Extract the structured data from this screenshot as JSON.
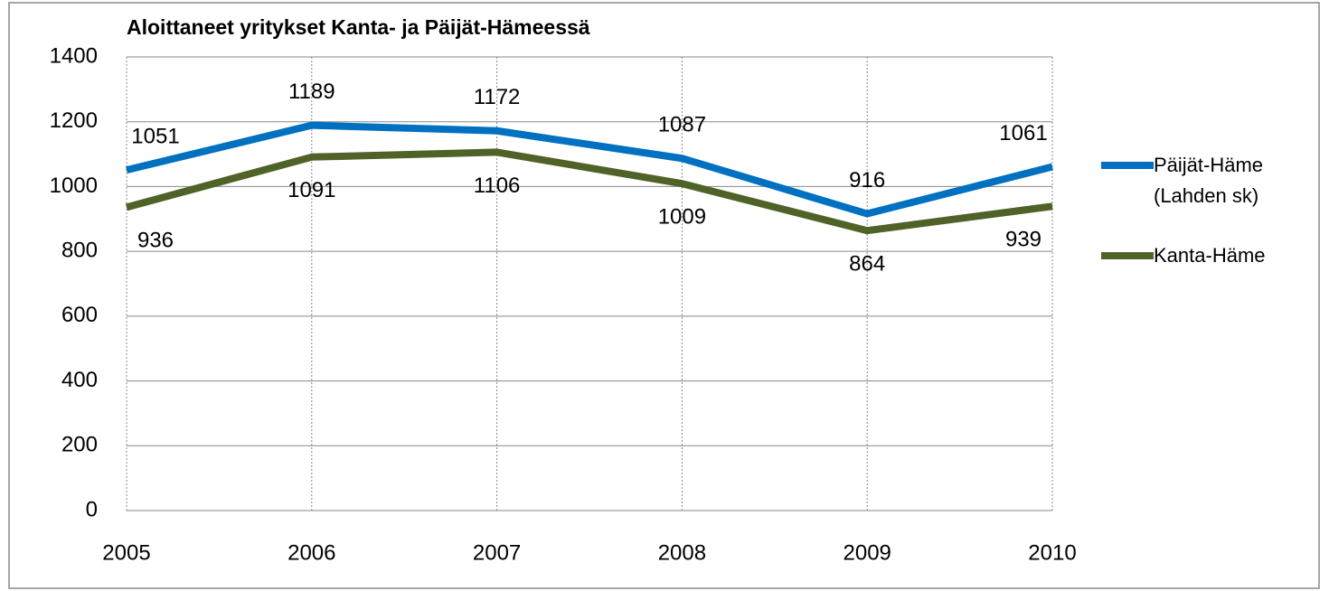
{
  "chart_data": {
    "type": "line",
    "title": "Aloittaneet yritykset Kanta- ja Päijät-Hämeessä",
    "x": [
      2005,
      2006,
      2007,
      2008,
      2009,
      2010
    ],
    "xlim": [
      2005,
      2010
    ],
    "xticks": [
      2005,
      2006,
      2007,
      2008,
      2009,
      2010
    ],
    "ylim": [
      0,
      1400
    ],
    "yticks": [
      0,
      200,
      400,
      600,
      800,
      1000,
      1200,
      1400
    ],
    "grid": true,
    "legend": "right",
    "series": [
      {
        "name": "Päijät-Häme (Lahden sk)",
        "color": "#0070c0",
        "values": [
          1051,
          1189,
          1172,
          1087,
          916,
          1061
        ]
      },
      {
        "name": "Kanta-Häme",
        "color": "#4f6228",
        "values": [
          936,
          1091,
          1106,
          1009,
          864,
          939
        ]
      }
    ]
  }
}
